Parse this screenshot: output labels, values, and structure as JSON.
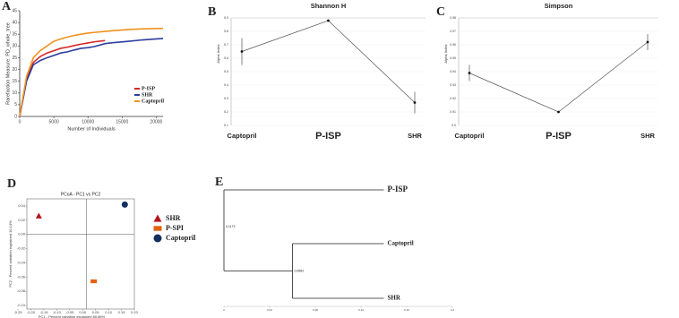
{
  "chart_data": [
    {
      "type": "line",
      "panel_label": "A",
      "x_label": "Number of Individuals",
      "y_label": "Rarefaction Measure: PD_whole_tree",
      "x": [
        0,
        1000,
        2000,
        3000,
        4000,
        5000,
        6000,
        7000,
        8000,
        9000,
        10000,
        11000,
        12500,
        14000,
        16000,
        18000,
        21000
      ],
      "series": [
        {
          "name": "P-ISP",
          "color": "#d62728",
          "values": [
            0,
            16,
            23,
            25.5,
            27,
            28,
            29,
            29.5,
            30.2,
            30.8,
            31.3,
            31.8,
            32.3,
            null,
            null,
            null,
            null
          ]
        },
        {
          "name": "SHR",
          "color": "#2c3e9e",
          "values": [
            0,
            15,
            22,
            23.8,
            25,
            26,
            27,
            27.5,
            28.3,
            29,
            29.3,
            29.8,
            31,
            31.5,
            32,
            32.6,
            33.2
          ]
        },
        {
          "name": "Captopril",
          "color": "#f0921e",
          "values": [
            0,
            17,
            25,
            28,
            30,
            32,
            33,
            33.8,
            34.5,
            35,
            35.5,
            35.8,
            36.2,
            36.6,
            37,
            37.3,
            37.5
          ]
        }
      ],
      "xlim": [
        0,
        21000
      ],
      "xticks": [
        0,
        5000,
        10000,
        15000,
        20000
      ],
      "ylim": [
        0,
        45
      ],
      "yticks": [
        0,
        5,
        10,
        15,
        20,
        25,
        30,
        35,
        40,
        45
      ]
    },
    {
      "type": "errorline",
      "panel_label": "B",
      "title": "Shannon H",
      "y_label": "Alpha Index",
      "categories": [
        "Captopril",
        "P-ISP",
        "SHR"
      ],
      "values": [
        5.65,
        5.88,
        5.27
      ],
      "errors": [
        0.1,
        0,
        0.08
      ],
      "color": "#555555",
      "ylim": [
        5.1,
        5.9
      ],
      "yticks": [
        5.1,
        5.2,
        5.3,
        5.4,
        5.5,
        5.6,
        5.7,
        5.8,
        5.9
      ],
      "grid": true
    },
    {
      "type": "errorline",
      "panel_label": "C",
      "title": "Simpson",
      "y_label": "Alpha Index",
      "categories": [
        "Captopril",
        "P-ISP",
        "SHR"
      ],
      "values": [
        0.939,
        0.91,
        0.962
      ],
      "errors": [
        0.006,
        0,
        0.006
      ],
      "color": "#555555",
      "ylim": [
        0.9,
        0.98
      ],
      "yticks": [
        0.9,
        0.91,
        0.92,
        0.93,
        0.94,
        0.95,
        0.96,
        0.97,
        0.98
      ],
      "grid": true
    },
    {
      "type": "scatter",
      "panel_label": "D",
      "title": "PCoA - PC1 vs PC2",
      "x_label": "PC1 - Percent variation explained 89.86%",
      "y_label": "PC2 - Percent variation explained 10.14%",
      "series": [
        {
          "name": "SHR",
          "color": "#b3151b",
          "marker": "triangle",
          "x": [
            -0.2
          ],
          "values": [
            0.026
          ]
        },
        {
          "name": "P-SPI",
          "color": "#e2620f",
          "marker": "square",
          "x": [
            0.03
          ],
          "values": [
            -0.066
          ]
        },
        {
          "name": "Captopril",
          "color": "#13305e",
          "marker": "circle",
          "x": [
            0.16
          ],
          "values": [
            0.042
          ]
        }
      ],
      "xlim": [
        -0.25,
        0.2
      ],
      "xticks": [
        -0.25,
        {
          "value": -0.2,
          "label": "-0.20"
        },
        -0.15,
        {
          "value": -0.1,
          "label": "-0.10"
        },
        -0.05,
        {
          "value": 0,
          "label": "0.00"
        },
        0.05,
        {
          "value": 0.1,
          "label": "0.10"
        },
        0.15,
        {
          "value": 0.2,
          "label": "0.20"
        }
      ],
      "ylim": [
        -0.105,
        0.05
      ],
      "yticks": [
        0.04,
        0.02,
        {
          "value": 0,
          "label": "0.00"
        },
        -0.02,
        -0.04,
        -0.06,
        -0.08,
        {
          "value": -0.1,
          "label": "-0.10"
        }
      ]
    },
    {
      "type": "dendrogram",
      "panel_label": "E",
      "leaves": [
        "P-ISP",
        "Captopril",
        "SHR"
      ],
      "leaf_x": 0.14,
      "nodes": [
        {
          "label": "0.1173",
          "x": 0
        },
        {
          "label": "0.0662",
          "x": 0.06
        }
      ],
      "xlim": [
        0,
        0.2
      ],
      "xticks": [
        0,
        0.04,
        0.08,
        0.12,
        0.16,
        0.2
      ]
    }
  ]
}
